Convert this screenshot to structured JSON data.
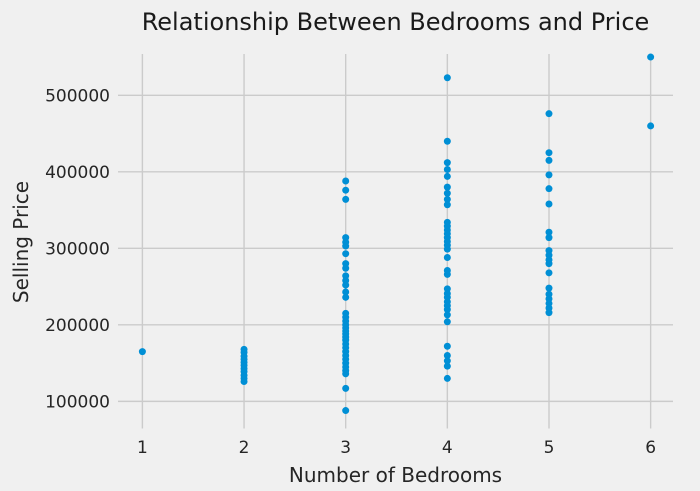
{
  "title": "Relationship Between Bedrooms and Price",
  "colors": {
    "background": "#f0f0f0",
    "grid": "#cbcbcb",
    "point": "#008fd5",
    "text": "#262626",
    "title_text": "#1a1a1a"
  },
  "chart_data": {
    "type": "scatter",
    "title": "Relationship Between Bedrooms and Price",
    "xlabel": "Number of Bedrooms",
    "ylabel": "Selling Price",
    "x_ticks": [
      1,
      2,
      3,
      4,
      5,
      6
    ],
    "y_ticks": [
      100000,
      200000,
      300000,
      400000,
      500000
    ],
    "xlim": [
      0.76,
      6.22
    ],
    "ylim": [
      75000,
      554000
    ],
    "grid": true,
    "legend": "none",
    "point_color": "#008fd5",
    "series": [
      {
        "name": "1 bedroom",
        "x": 1,
        "prices": [
          165000
        ]
      },
      {
        "name": "2 bedrooms",
        "x": 2,
        "prices": [
          168000,
          164000,
          159000,
          155000,
          151000,
          147000,
          143000,
          139000,
          134000,
          130000,
          126000
        ]
      },
      {
        "name": "3 bedrooms",
        "x": 3,
        "prices": [
          388000,
          376000,
          364000,
          314000,
          308000,
          303000,
          293000,
          280000,
          274000,
          264000,
          258000,
          252000,
          243000,
          236000,
          215000,
          210000,
          205000,
          200000,
          196000,
          192000,
          188000,
          184000,
          180000,
          175000,
          170000,
          165000,
          160000,
          155000,
          150000,
          145000,
          140000,
          136000,
          117000,
          88000
        ]
      },
      {
        "name": "4 bedrooms",
        "x": 4,
        "prices": [
          523000,
          440000,
          412000,
          403000,
          394000,
          380000,
          372000,
          364000,
          357000,
          334000,
          329000,
          324000,
          319000,
          314000,
          309000,
          304000,
          299000,
          288000,
          271000,
          266000,
          247000,
          241000,
          236000,
          230000,
          225000,
          220000,
          213000,
          204000,
          172000,
          160000,
          153000,
          146000,
          130000
        ]
      },
      {
        "name": "5 bedrooms",
        "x": 5,
        "prices": [
          476000,
          425000,
          415000,
          396000,
          378000,
          358000,
          321000,
          314000,
          297000,
          291000,
          285000,
          280000,
          268000,
          248000,
          240000,
          234000,
          228000,
          222000,
          216000
        ]
      },
      {
        "name": "6 bedrooms",
        "x": 6,
        "prices": [
          550000,
          460000
        ]
      }
    ]
  }
}
